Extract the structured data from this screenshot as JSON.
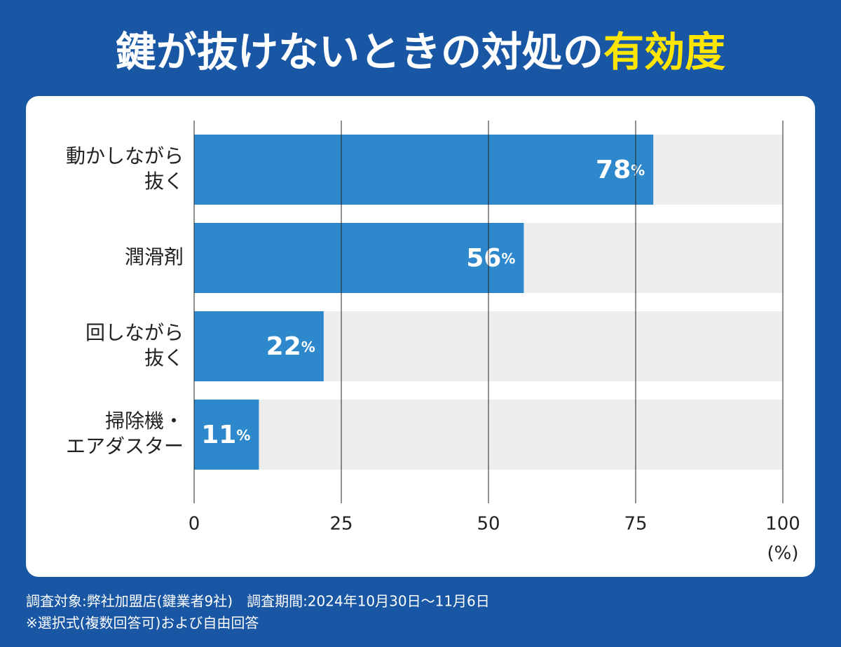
{
  "chart_data": {
    "type": "hbar",
    "title": [
      "鍵が抜けないときの対処の",
      "有効度"
    ],
    "categories": [
      [
        "動かしながら",
        "抜く"
      ],
      [
        "潤滑剤"
      ],
      [
        "回しながら",
        "抜く"
      ],
      [
        "掃除機・",
        "エアダスター"
      ]
    ],
    "values": [
      78,
      56,
      22,
      11
    ],
    "value_labels": [
      "78%",
      "56%",
      "22%",
      "11%"
    ],
    "color": "#2e88cc",
    "xlim": [
      0,
      100
    ],
    "xticks": [
      0,
      25,
      50,
      75,
      100
    ],
    "x_unit": "(%)",
    "grid": true,
    "notes": [
      "調査対象:弊社加盟店(鍵業者9社)　調査期間:2024年10月30日～11月6日",
      "※選択式(複数回答可)および自由回答"
    ]
  }
}
